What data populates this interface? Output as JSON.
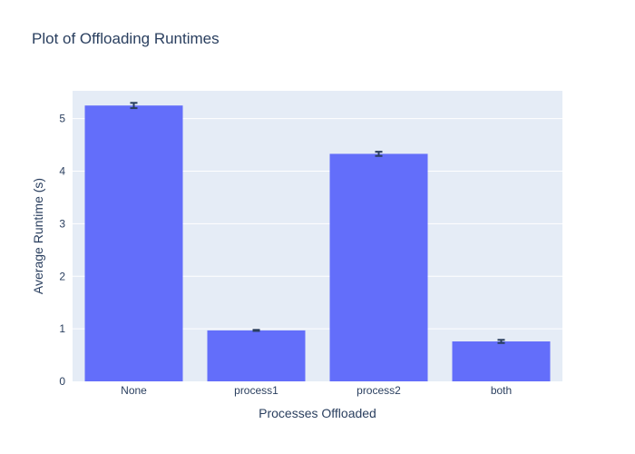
{
  "chart_data": {
    "type": "bar",
    "title": "Plot of Offloading Runtimes",
    "xlabel": "Processes Offloaded",
    "ylabel": "Average Runtime (s)",
    "categories": [
      "None",
      "process1",
      "process2",
      "both"
    ],
    "values": [
      5.25,
      0.97,
      4.33,
      0.76
    ],
    "error": [
      0.05,
      0.01,
      0.04,
      0.03
    ],
    "ylim": [
      0,
      5.53
    ],
    "yticks": [
      0,
      1,
      2,
      3,
      4,
      5
    ],
    "grid": true,
    "colors": {
      "bar": "#636efa",
      "plot_bg": "#e5ecf6",
      "grid": "#ffffff",
      "error_bar": "#2a3f5f",
      "text": "#2a3f5f"
    }
  }
}
